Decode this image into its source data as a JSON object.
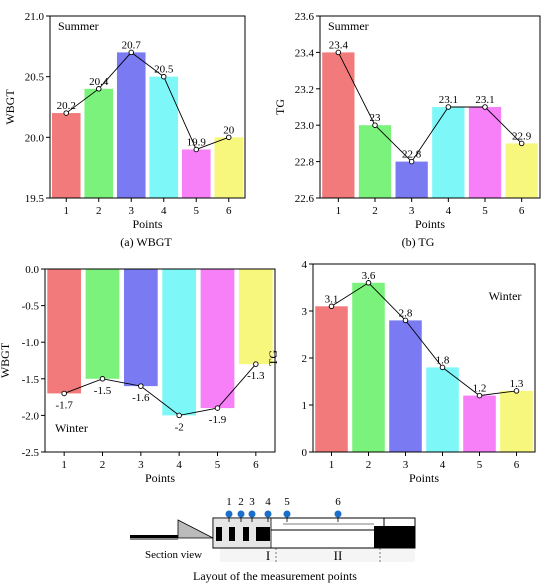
{
  "figure": {
    "caption_bottom": "Layout of the measurement points",
    "section_view_label": "Section view",
    "zone_labels": [
      "I",
      "II"
    ],
    "point_labels": [
      "1",
      "2",
      "3",
      "4",
      "5",
      "6"
    ],
    "marker_color": "#1a6fc9",
    "zone_label_color": "#1a6fc9"
  },
  "chart_data": [
    {
      "id": "a",
      "type": "bar",
      "season": "Summer",
      "caption": "(a) WBGT",
      "xlabel": "Points",
      "ylabel": "WBGT",
      "categories": [
        "1",
        "2",
        "3",
        "4",
        "5",
        "6"
      ],
      "values": [
        20.2,
        20.4,
        20.7,
        20.5,
        19.9,
        20.0
      ],
      "labels": [
        "20.2",
        "20.4",
        "20.7",
        "20.5",
        "19.9",
        "20"
      ],
      "ylim": [
        19.5,
        21.0
      ],
      "yticks": [
        19.5,
        20.0,
        20.5,
        21.0
      ],
      "ytick_labels": [
        "19.5",
        "20.0",
        "20.5",
        "21.0"
      ],
      "overlay_line": true,
      "grid": false
    },
    {
      "id": "b",
      "type": "bar",
      "season": "Summer",
      "caption": "(b) TG",
      "xlabel": "Points",
      "ylabel": "TG",
      "categories": [
        "1",
        "2",
        "3",
        "4",
        "5",
        "6"
      ],
      "values": [
        23.4,
        23.0,
        22.8,
        23.1,
        23.1,
        22.9
      ],
      "labels": [
        "23.4",
        "23",
        "22.8",
        "23.1",
        "23.1",
        "22.9"
      ],
      "ylim": [
        22.6,
        23.6
      ],
      "yticks": [
        22.6,
        22.8,
        23.0,
        23.2,
        23.4,
        23.6
      ],
      "ytick_labels": [
        "22.6",
        "22.8",
        "23.0",
        "23.2",
        "23.4",
        "23.6"
      ],
      "overlay_line": true,
      "grid": false
    },
    {
      "id": "c",
      "type": "bar",
      "season": "Winter",
      "caption": "",
      "xlabel": "Points",
      "ylabel": "WBGT",
      "categories": [
        "1",
        "2",
        "3",
        "4",
        "5",
        "6"
      ],
      "values": [
        -1.7,
        -1.5,
        -1.6,
        -2.0,
        -1.9,
        -1.3
      ],
      "labels": [
        "-1.7",
        "-1.5",
        "-1.6",
        "-2",
        "-1.9",
        "-1.3"
      ],
      "ylim": [
        -2.5,
        0.0
      ],
      "yticks": [
        -2.5,
        -2.0,
        -1.5,
        -1.0,
        -0.5,
        0.0
      ],
      "ytick_labels": [
        "-2.5",
        "-2.0",
        "-1.5",
        "-1.0",
        "-0.5",
        "0.0"
      ],
      "overlay_line": true,
      "grid": false
    },
    {
      "id": "d",
      "type": "bar",
      "season": "Winter",
      "caption": "",
      "xlabel": "Points",
      "ylabel": "TG",
      "categories": [
        "1",
        "2",
        "3",
        "4",
        "5",
        "6"
      ],
      "values": [
        3.1,
        3.6,
        2.8,
        1.8,
        1.2,
        1.3
      ],
      "labels": [
        "3.1",
        "3.6",
        "2.8",
        "1.8",
        "1.2",
        "1.3"
      ],
      "ylim": [
        0,
        4
      ],
      "yticks": [
        0,
        1,
        2,
        3,
        4
      ],
      "ytick_labels": [
        "0",
        "1",
        "2",
        "3",
        "4"
      ],
      "overlay_line": true,
      "grid": false
    }
  ],
  "bar_colors": [
    "#f27a7a",
    "#7bf27b",
    "#7a7af2",
    "#7df7f7",
    "#f77ff7",
    "#f7f77d"
  ]
}
